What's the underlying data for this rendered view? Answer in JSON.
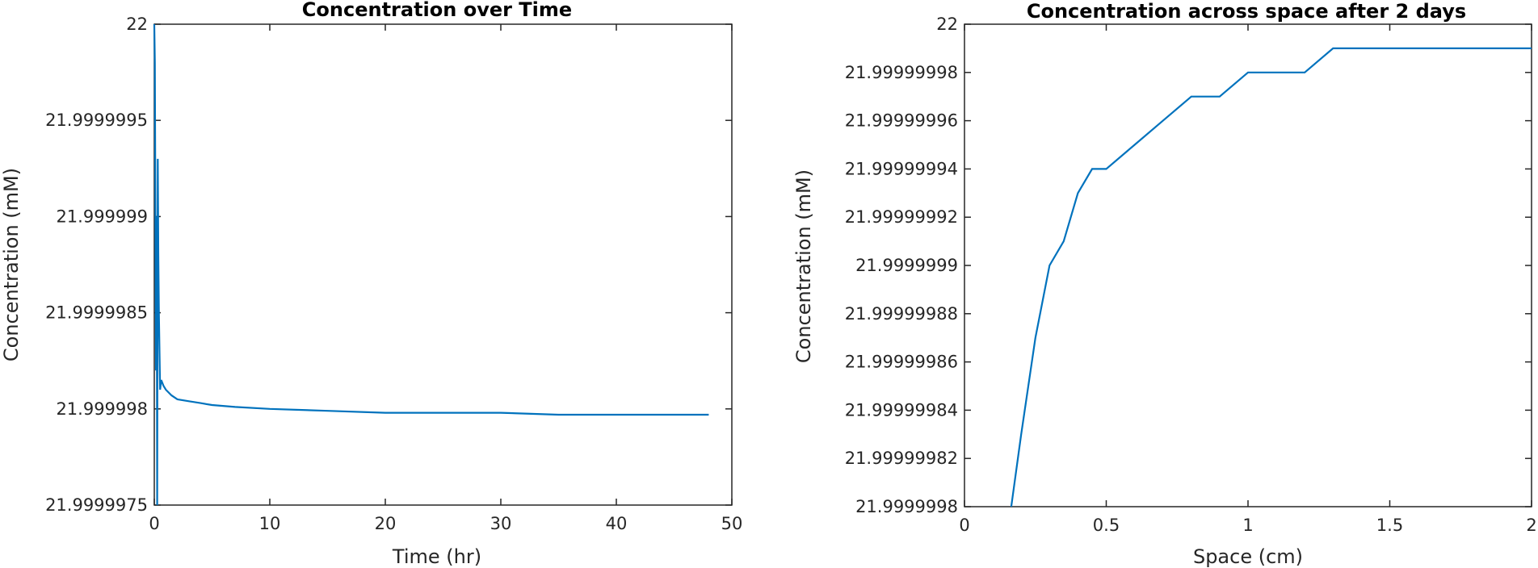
{
  "chart_data": [
    {
      "type": "line",
      "title": "Concentration over Time",
      "xlabel": "Time (hr)",
      "ylabel": "Concentration (mM)",
      "xlim": [
        0,
        50
      ],
      "ylim": [
        21.9999975,
        22
      ],
      "x_ticks": [
        0,
        10,
        20,
        30,
        40,
        50
      ],
      "x_tick_labels": [
        "0",
        "10",
        "20",
        "30",
        "40",
        "50"
      ],
      "y_ticks": [
        21.9999975,
        21.999998,
        21.9999985,
        21.999999,
        21.9999995,
        22
      ],
      "y_tick_labels": [
        "21.9999975",
        "21.999998",
        "21.9999985",
        "21.999999",
        "21.9999995",
        "22"
      ],
      "grid": false,
      "legend": "none",
      "series_color": "#0072BD",
      "series": [
        {
          "x": [
            0,
            0.05,
            0.1,
            0.15,
            0.2,
            0.25,
            0.3,
            0.35,
            0.4,
            0.5,
            0.6,
            0.8,
            1.0,
            1.5,
            2,
            3,
            4,
            5,
            7,
            10,
            15,
            20,
            25,
            30,
            35,
            40,
            45,
            48
          ],
          "y": [
            22.0,
            21.9999998,
            21.999999,
            21.9999982,
            21.999999,
            21.9999975,
            21.9999993,
            21.9999988,
            21.9999985,
            21.9999981,
            21.99999815,
            21.99999812,
            21.9999981,
            21.99999807,
            21.99999805,
            21.99999804,
            21.99999803,
            21.99999802,
            21.99999801,
            21.999998,
            21.99999799,
            21.99999798,
            21.99999798,
            21.99999798,
            21.99999797,
            21.99999797,
            21.99999797,
            21.99999797
          ]
        }
      ]
    },
    {
      "type": "line",
      "title": "Concentration across space after 2 days",
      "xlabel": "Space (cm)",
      "ylabel": "Concentration (mM)",
      "xlim": [
        0,
        2
      ],
      "ylim": [
        21.9999998,
        22
      ],
      "x_ticks": [
        0,
        0.5,
        1,
        1.5,
        2
      ],
      "x_tick_labels": [
        "0",
        "0.5",
        "1",
        "1.5",
        "2"
      ],
      "y_ticks": [
        21.9999998,
        21.99999982,
        21.99999984,
        21.99999986,
        21.99999988,
        21.9999999,
        21.99999992,
        21.99999994,
        21.99999996,
        21.99999998,
        22
      ],
      "y_tick_labels": [
        "21.9999998",
        "21.99999982",
        "21.99999984",
        "21.99999986",
        "21.99999988",
        "21.9999999",
        "21.99999992",
        "21.99999994",
        "21.99999996",
        "21.99999998",
        "22"
      ],
      "grid": false,
      "legend": "none",
      "series_color": "#0072BD",
      "series": [
        {
          "x": [
            0.165,
            0.2,
            0.25,
            0.3,
            0.35,
            0.4,
            0.45,
            0.5,
            0.6,
            0.7,
            0.8,
            0.9,
            1.0,
            1.1,
            1.2,
            1.3,
            1.4,
            1.5,
            1.6,
            1.7,
            1.8,
            1.9,
            2.0
          ],
          "y": [
            21.9999998,
            21.99999983,
            21.99999987,
            21.9999999,
            21.99999991,
            21.99999993,
            21.99999994,
            21.99999994,
            21.99999995,
            21.99999996,
            21.99999997,
            21.99999997,
            21.99999998,
            21.99999998,
            21.99999998,
            21.99999999,
            21.99999999,
            21.99999999,
            21.99999999,
            21.99999999,
            21.99999999,
            21.99999999,
            21.99999999
          ]
        }
      ]
    }
  ]
}
